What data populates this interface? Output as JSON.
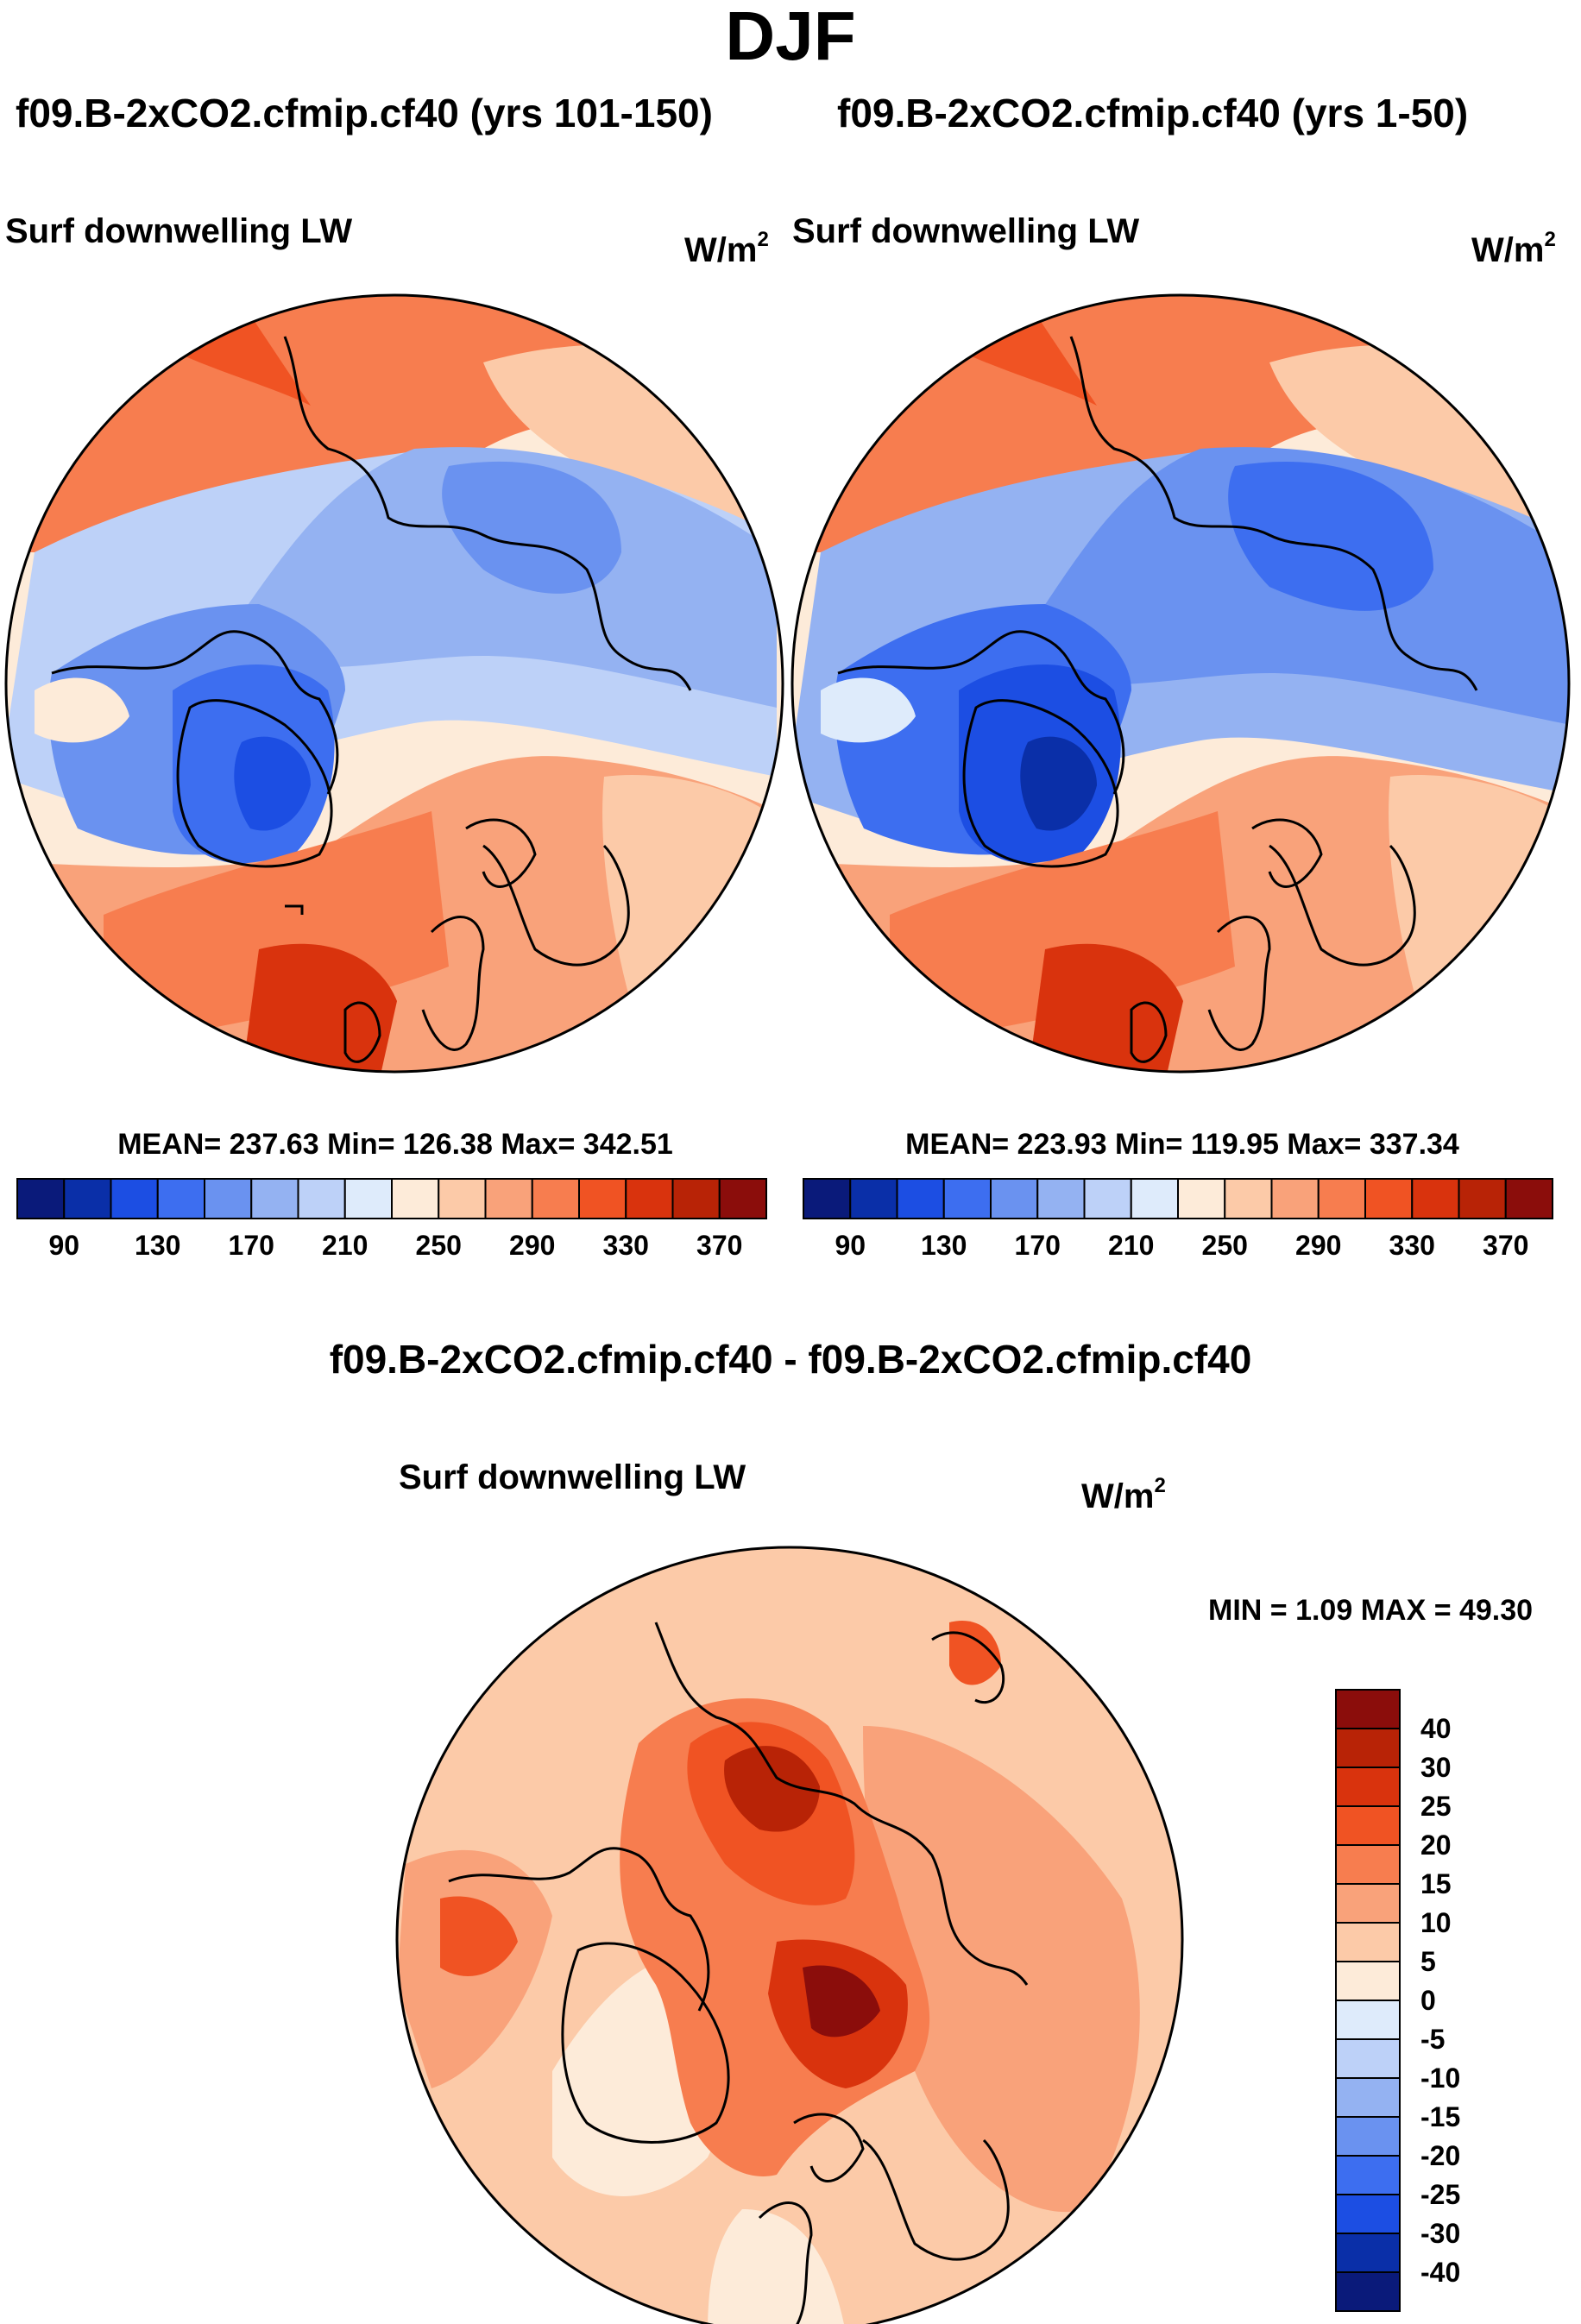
{
  "title": "DJF",
  "colors": {
    "abs_levels": [
      "#0a1a7a",
      "#0a2fa8",
      "#1c4ee3",
      "#3d6ef0",
      "#6a92f0",
      "#94b2f2",
      "#bdd1f8",
      "#deebfb",
      "#fdebd9",
      "#fccaa8",
      "#f9a27a",
      "#f77d4f",
      "#f05323",
      "#d9330d",
      "#b82306",
      "#8b0d0b"
    ],
    "diff_levels": [
      "#0a1a7a",
      "#0a2fa8",
      "#1c4ee3",
      "#3d6ef0",
      "#6a92f0",
      "#94b2f2",
      "#bdd1f8",
      "#deebfb",
      "#fdebd9",
      "#fccaa8",
      "#f9a27a",
      "#f77d4f",
      "#f05323",
      "#d9330d",
      "#b82306",
      "#8b0d0b"
    ]
  },
  "panels": {
    "left": {
      "case": "f09.B-2xCO2.cfmip.cf40 (yrs 101-150)",
      "variable": "Surf downwelling LW",
      "units_base": "W/m",
      "units_exp": "2",
      "stats": "MEAN= 237.63  Min= 126.38  Max= 342.51"
    },
    "right": {
      "case": "f09.B-2xCO2.cfmip.cf40 (yrs 1-50)",
      "variable": "Surf downwelling LW",
      "units_base": "W/m",
      "units_exp": "2",
      "stats": "MEAN= 223.93  Min= 119.95  Max= 337.34"
    },
    "diff": {
      "case": "f09.B-2xCO2.cfmip.cf40 - f09.B-2xCO2.cfmip.cf40",
      "variable": "Surf downwelling LW",
      "units_base": "W/m",
      "units_exp": "2",
      "stats": "MIN =   1.09 MAX =  49.30"
    }
  },
  "chart_data": [
    {
      "type": "heatmap",
      "projection": "north-polar-stereographic",
      "title": "f09.B-2xCO2.cfmip.cf40 (yrs 101-150)",
      "variable": "Surf downwelling LW",
      "units": "W/m2",
      "mean": 237.63,
      "min": 126.38,
      "max": 342.51,
      "colorbar_ticks": [
        "90",
        "130",
        "170",
        "210",
        "250",
        "290",
        "330",
        "370"
      ],
      "colorbar_bins": 16,
      "colorbar_range": [
        70,
        390
      ]
    },
    {
      "type": "heatmap",
      "projection": "north-polar-stereographic",
      "title": "f09.B-2xCO2.cfmip.cf40 (yrs 1-50)",
      "variable": "Surf downwelling LW",
      "units": "W/m2",
      "mean": 223.93,
      "min": 119.95,
      "max": 337.34,
      "colorbar_ticks": [
        "90",
        "130",
        "170",
        "210",
        "250",
        "290",
        "330",
        "370"
      ],
      "colorbar_bins": 16,
      "colorbar_range": [
        70,
        390
      ]
    },
    {
      "type": "heatmap",
      "projection": "north-polar-stereographic",
      "title": "f09.B-2xCO2.cfmip.cf40 - f09.B-2xCO2.cfmip.cf40",
      "variable": "Surf downwelling LW",
      "units": "W/m2",
      "min": 1.09,
      "max": 49.3,
      "colorbar_ticks": [
        "40",
        "30",
        "25",
        "20",
        "15",
        "10",
        "5",
        "0",
        "-5",
        "-10",
        "-15",
        "-20",
        "-25",
        "-30",
        "-40"
      ],
      "colorbar_bins": 16
    }
  ]
}
